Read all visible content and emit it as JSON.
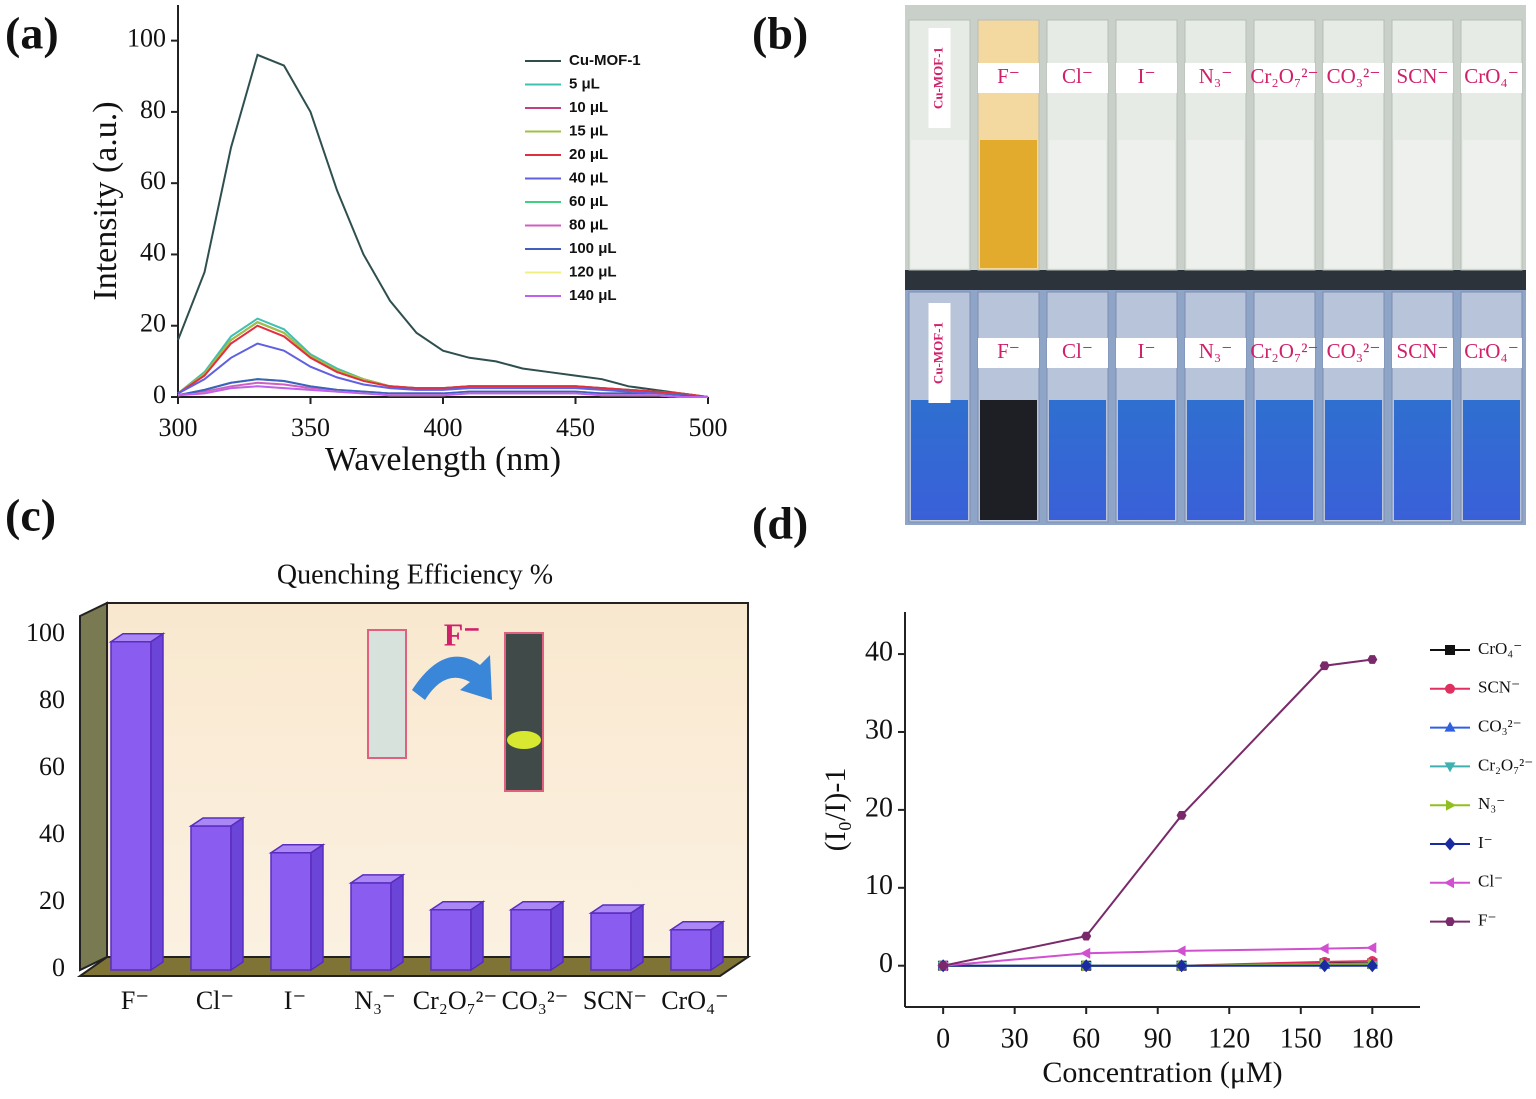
{
  "photo": {
    "panel_label": "(b)",
    "top_labels": [
      "Cu-MOF-1",
      "F⁻",
      "Cl⁻",
      "I⁻",
      "N₃⁻",
      "Cr₂O₇²⁻",
      "CO₃²⁻",
      "SCN⁻",
      "CrO₄⁻"
    ],
    "bottom_labels": [
      "Cu-MOF-1",
      "F⁻",
      "Cl⁻",
      "I⁻",
      "N₃⁻",
      "Cr₂O₇²⁻",
      "CO₃²⁻",
      "SCN⁻",
      "CrO₄⁻"
    ]
  },
  "chart_data": [
    {
      "type": "line",
      "panel_label": "(a)",
      "x_label": "Wavelength (nm)",
      "y_label": "Intensity (a.u.)",
      "x": [
        300,
        310,
        320,
        330,
        340,
        350,
        360,
        370,
        380,
        390,
        400,
        410,
        420,
        430,
        440,
        450,
        460,
        470,
        480,
        490,
        500
      ],
      "xlim": [
        300,
        500
      ],
      "xticks": [
        300,
        350,
        400,
        450,
        500
      ],
      "ylim": [
        0,
        110
      ],
      "yticks": [
        0,
        20,
        40,
        60,
        80,
        100
      ],
      "series": [
        {
          "name": "Cu-MOF-1",
          "color": "#2f4f4f",
          "values": [
            16,
            35,
            70,
            96,
            93,
            80,
            58,
            40,
            27,
            18,
            13,
            11,
            10,
            8,
            7,
            6,
            5,
            3,
            2,
            1,
            0
          ]
        },
        {
          "name": "5 μL",
          "color": "#40c0b0",
          "values": [
            1,
            7,
            17,
            22,
            19,
            12,
            8,
            5,
            3,
            2.5,
            2.5,
            3,
            3,
            3,
            3,
            3,
            2.5,
            2,
            1.5,
            1,
            0
          ]
        },
        {
          "name": "10 μL",
          "color": "#c04080",
          "values": [
            1,
            6.5,
            16,
            21,
            18,
            11.5,
            7.5,
            5,
            3,
            2.5,
            2.5,
            3,
            3,
            3,
            3,
            3,
            2.5,
            2,
            1.5,
            1,
            0
          ]
        },
        {
          "name": "15 μL",
          "color": "#a0c040",
          "values": [
            1,
            6.5,
            16,
            21,
            18,
            11.5,
            7.5,
            5,
            3,
            2.5,
            2.5,
            3,
            3,
            3,
            3,
            3,
            2.5,
            2,
            1.5,
            1,
            0
          ]
        },
        {
          "name": "20 μL",
          "color": "#e03040",
          "values": [
            1,
            6,
            15,
            20,
            17,
            11,
            7,
            4.5,
            3,
            2.5,
            2.5,
            3,
            3,
            3,
            3,
            3,
            2.5,
            2,
            1.5,
            1,
            0
          ]
        },
        {
          "name": "40 μL",
          "color": "#6060e0",
          "values": [
            1,
            5,
            11,
            15,
            13,
            8.5,
            5.5,
            3.5,
            2.5,
            2,
            2,
            2.5,
            2.5,
            2.5,
            2.5,
            2.5,
            2,
            1.5,
            1,
            0.5,
            0
          ]
        },
        {
          "name": "60 μL",
          "color": "#40d080",
          "values": [
            0.5,
            2,
            4,
            5,
            4.5,
            3,
            2,
            1.5,
            1,
            1,
            1,
            1.5,
            1.5,
            1.5,
            1.5,
            1.5,
            1,
            1,
            0.5,
            0.5,
            0
          ]
        },
        {
          "name": "80 μL",
          "color": "#d060c0",
          "values": [
            0.5,
            1.5,
            3,
            4,
            3.5,
            2.5,
            1.5,
            1,
            1,
            1,
            1,
            1,
            1,
            1,
            1,
            1,
            1,
            0.5,
            0.5,
            0.5,
            0
          ]
        },
        {
          "name": "100 μL",
          "color": "#4060c0",
          "values": [
            0.5,
            2,
            4,
            5,
            4.5,
            3,
            2,
            1.5,
            1,
            1,
            1,
            1.5,
            1.5,
            1.5,
            1.5,
            1.5,
            1,
            1,
            0.5,
            0.5,
            0
          ]
        },
        {
          "name": "120 μL",
          "color": "#f0f080",
          "values": [
            0.5,
            1,
            2.5,
            3,
            2.5,
            2,
            1.5,
            1,
            0.5,
            0.5,
            0.5,
            1,
            1,
            1,
            1,
            1,
            0.5,
            0.5,
            0.5,
            0,
            0
          ]
        },
        {
          "name": "140 μL",
          "color": "#c060f0",
          "values": [
            0.5,
            1,
            2.5,
            3,
            2.5,
            2,
            1.5,
            1,
            0.5,
            0.5,
            0.5,
            1,
            1,
            1,
            1,
            1,
            0.5,
            0.5,
            0.5,
            0,
            0
          ]
        }
      ]
    },
    {
      "type": "bar",
      "panel_label": "(c)",
      "title": "Quenching Efficiency %",
      "annotation": "F⁻",
      "categories": [
        "F⁻",
        "Cl⁻",
        "I⁻",
        "N₃⁻",
        "Cr₂O₇²⁻",
        "CO₃²⁻",
        "SCN⁻",
        "CrO₄⁻"
      ],
      "values": [
        98,
        43,
        35,
        26,
        18,
        18,
        17,
        12
      ],
      "color": "#8a5cf0",
      "ylim": [
        0,
        100
      ],
      "yticks": [
        0,
        20,
        40,
        60,
        80,
        100
      ]
    },
    {
      "type": "line",
      "panel_label": "(d)",
      "x_label": "Concentration (μM)",
      "y_label": "(I₀/I)-1",
      "x": [
        0,
        60,
        100,
        160,
        180
      ],
      "xlim": [
        -16,
        200
      ],
      "xticks": [
        0,
        30,
        60,
        90,
        120,
        150,
        180
      ],
      "ylim": [
        -5.3,
        45.4
      ],
      "yticks": [
        0,
        10,
        20,
        30,
        40
      ],
      "series": [
        {
          "name": "CrO₄⁻",
          "color": "#111111",
          "marker": "square",
          "values": [
            0,
            0,
            0,
            0.3,
            0.3
          ]
        },
        {
          "name": "SCN⁻",
          "color": "#e03060",
          "marker": "circle",
          "values": [
            0,
            0,
            0,
            0.5,
            0.6
          ]
        },
        {
          "name": "CO₃²⁻",
          "color": "#3060e0",
          "marker": "triangle-up",
          "values": [
            0,
            0,
            0,
            0.1,
            0.1
          ]
        },
        {
          "name": "Cr₂O₇²⁻",
          "color": "#40b0b0",
          "marker": "triangle-down",
          "values": [
            0,
            0,
            0,
            0.1,
            0.1
          ]
        },
        {
          "name": "N₃⁻",
          "color": "#90c020",
          "marker": "triangle-right",
          "values": [
            0,
            0,
            0,
            0.2,
            0.2
          ]
        },
        {
          "name": "I⁻",
          "color": "#1a2aa0",
          "marker": "diamond",
          "values": [
            0,
            0,
            0,
            0,
            0
          ]
        },
        {
          "name": "Cl⁻",
          "color": "#d050d0",
          "marker": "triangle-left",
          "values": [
            0,
            1.6,
            1.9,
            2.2,
            2.3
          ]
        },
        {
          "name": "F⁻",
          "color": "#7a2a6a",
          "marker": "hexagon",
          "values": [
            0,
            3.8,
            19.3,
            38.5,
            39.3
          ]
        }
      ]
    }
  ]
}
